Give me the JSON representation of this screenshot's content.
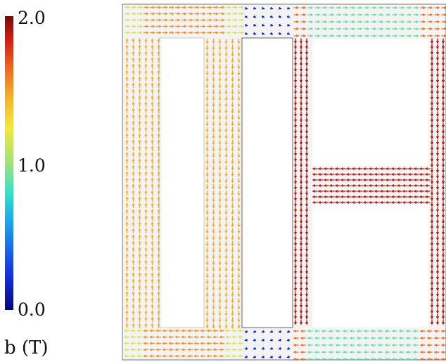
{
  "colorbar": {
    "ticks": [
      "2.0",
      "1.0",
      "0.0"
    ],
    "title": "b (T)"
  },
  "field_plot": {
    "quantity": "magnetic flux density vectors",
    "min": 0.0,
    "max": 2.0,
    "regions": [
      {
        "name": "left rectangular core",
        "b_level": 1.45
      },
      {
        "name": "right H-shaped core",
        "b_level": 1.9
      },
      {
        "name": "air gap fringe field",
        "b_level": 0.4
      }
    ]
  }
}
